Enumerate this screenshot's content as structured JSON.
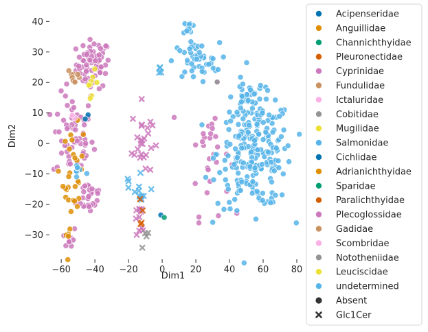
{
  "chart_data": {
    "type": "scatter",
    "xlabel": "Dim1",
    "ylabel": "Dim2",
    "xlim": [
      -67,
      80
    ],
    "ylim": [
      -38,
      43
    ],
    "xticks": [
      -60,
      -40,
      -20,
      0,
      20,
      40,
      60,
      80
    ],
    "yticks": [
      -30,
      -20,
      -10,
      0,
      10,
      20,
      30,
      40
    ],
    "grid": false,
    "legend_position": "outside-right",
    "hue_legend": [
      {
        "label": "Acipenseridae",
        "color": "#0173b2"
      },
      {
        "label": "Anguillidae",
        "color": "#de8f05"
      },
      {
        "label": "Channichthyidae",
        "color": "#029e73"
      },
      {
        "label": "Pleuronectidae",
        "color": "#d55e00"
      },
      {
        "label": "Cyprinidae",
        "color": "#cc78bc"
      },
      {
        "label": "Fundulidae",
        "color": "#ca9161"
      },
      {
        "label": "Ictaluridae",
        "color": "#fbafe4"
      },
      {
        "label": "Cobitidae",
        "color": "#949494"
      },
      {
        "label": "Mugilidae",
        "color": "#ece133"
      },
      {
        "label": "Salmonidae",
        "color": "#56b4e9"
      },
      {
        "label": "Cichlidae",
        "color": "#0173b2"
      },
      {
        "label": "Adrianichthyidae",
        "color": "#de8f05"
      },
      {
        "label": "Sparidae",
        "color": "#029e73"
      },
      {
        "label": "Paralichthyidae",
        "color": "#d55e00"
      },
      {
        "label": "Plecoglossidae",
        "color": "#cc78bc"
      },
      {
        "label": "Gadidae",
        "color": "#ca9161"
      },
      {
        "label": "Scombridae",
        "color": "#fbafe4"
      },
      {
        "label": "Nototheniidae",
        "color": "#949494"
      },
      {
        "label": "Leuciscidae",
        "color": "#ece133"
      },
      {
        "label": "undetermined",
        "color": "#56b4e9"
      }
    ],
    "style_legend": [
      {
        "label": "Absent",
        "marker": "circle",
        "color": "#333333"
      },
      {
        "label": "Glc1Cer",
        "marker": "x",
        "color": "#333333"
      }
    ],
    "clusters": [
      {
        "family": "Cyprinidae",
        "marker": "circle",
        "cx": -41,
        "cy": 26,
        "sx": 5,
        "sy": 4,
        "n": 70
      },
      {
        "family": "Cyprinidae",
        "marker": "circle",
        "cx": -53,
        "cy": 2,
        "sx": 6,
        "sy": 7,
        "n": 60
      },
      {
        "family": "Cyprinidae",
        "marker": "circle",
        "cx": -43,
        "cy": -17,
        "sx": 4,
        "sy": 3,
        "n": 30
      },
      {
        "family": "Cyprinidae",
        "marker": "circle",
        "cx": -55,
        "cy": -31,
        "sx": 2,
        "sy": 2,
        "n": 10
      },
      {
        "family": "Cyprinidae",
        "marker": "circle",
        "cx": 28,
        "cy": -3,
        "sx": 6,
        "sy": 10,
        "n": 30
      },
      {
        "family": "Cyprinidae",
        "marker": "x",
        "cx": -12,
        "cy": 1,
        "sx": 3,
        "sy": 6,
        "n": 25
      },
      {
        "family": "Cyprinidae",
        "marker": "x",
        "cx": -13,
        "cy": -25,
        "sx": 3,
        "sy": 4,
        "n": 12
      },
      {
        "family": "Anguillidae",
        "marker": "circle",
        "cx": -53,
        "cy": -11,
        "sx": 3,
        "sy": 8,
        "n": 30
      },
      {
        "family": "Anguillidae",
        "marker": "circle",
        "cx": -56,
        "cy": -30,
        "sx": 1,
        "sy": 1,
        "n": 3
      },
      {
        "family": "Fundulidae",
        "marker": "circle",
        "cx": -52,
        "cy": 22,
        "sx": 2,
        "sy": 1.5,
        "n": 10
      },
      {
        "family": "Mugilidae",
        "marker": "circle",
        "cx": -42,
        "cy": 20,
        "sx": 2,
        "sy": 2,
        "n": 8
      },
      {
        "family": "Salmonidae",
        "marker": "circle",
        "cx": 55,
        "cy": -3,
        "sx": 11,
        "sy": 9,
        "n": 240
      },
      {
        "family": "Salmonidae",
        "marker": "circle",
        "cx": 50,
        "cy": 15,
        "sx": 4,
        "sy": 3,
        "n": 25
      },
      {
        "family": "Salmonidae",
        "marker": "circle",
        "cx": 20,
        "cy": 27,
        "sx": 7,
        "sy": 3,
        "n": 45
      },
      {
        "family": "Salmonidae",
        "marker": "circle",
        "cx": 16,
        "cy": 37,
        "sx": 1.5,
        "sy": 2,
        "n": 12
      },
      {
        "family": "Salmonidae",
        "marker": "circle",
        "cx": -50,
        "cy": -9,
        "sx": 3,
        "sy": 2,
        "n": 8
      },
      {
        "family": "Salmonidae",
        "marker": "x",
        "cx": -15,
        "cy": -15,
        "sx": 5,
        "sy": 4,
        "n": 12
      },
      {
        "family": "Salmonidae",
        "marker": "x",
        "cx": -1,
        "cy": 24,
        "sx": 1,
        "sy": 1,
        "n": 4
      },
      {
        "family": "Acipenseridae",
        "marker": "circle",
        "cx": -44,
        "cy": 9,
        "sx": 1,
        "sy": 1,
        "n": 2
      },
      {
        "family": "Acipenseridae",
        "marker": "circle",
        "cx": 0,
        "cy": -24,
        "sx": 0.5,
        "sy": 0.5,
        "n": 1
      },
      {
        "family": "Pleuronectidae",
        "marker": "x",
        "cx": -12,
        "cy": -22,
        "sx": 3,
        "sy": 3,
        "n": 4
      },
      {
        "family": "Ictaluridae",
        "marker": "circle",
        "cx": -54,
        "cy": 9,
        "sx": 1,
        "sy": 1,
        "n": 2
      },
      {
        "family": "Channichthyidae",
        "marker": "circle",
        "cx": 1,
        "cy": -24,
        "sx": 0.5,
        "sy": 0.5,
        "n": 1
      },
      {
        "family": "Cobitidae",
        "marker": "circle",
        "cx": 33,
        "cy": 20,
        "sx": 0.5,
        "sy": 0.5,
        "n": 1
      },
      {
        "family": "Nototheniidae",
        "marker": "x",
        "cx": -9,
        "cy": -31,
        "sx": 2,
        "sy": 2,
        "n": 4
      }
    ]
  }
}
